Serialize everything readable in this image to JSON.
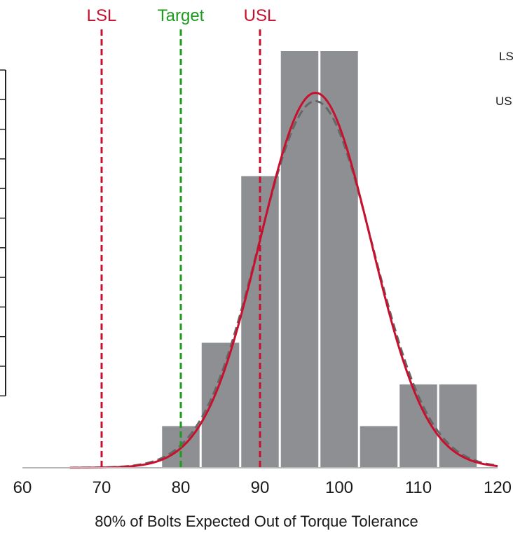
{
  "chart_data": {
    "type": "bar",
    "xlabel": "80% of Bolts Expected Out of Torque Tolerance",
    "xlim": [
      60,
      120
    ],
    "xticks": [
      60,
      70,
      80,
      90,
      100,
      110,
      120
    ],
    "bins": [
      {
        "start": 77.5,
        "end": 82.5,
        "count": 1
      },
      {
        "start": 82.5,
        "end": 87.5,
        "count": 3
      },
      {
        "start": 87.5,
        "end": 92.5,
        "count": 7
      },
      {
        "start": 92.5,
        "end": 97.5,
        "count": 10
      },
      {
        "start": 97.5,
        "end": 102.5,
        "count": 10
      },
      {
        "start": 102.5,
        "end": 107.5,
        "count": 1
      },
      {
        "start": 107.5,
        "end": 112.5,
        "count": 2
      },
      {
        "start": 112.5,
        "end": 117.5,
        "count": 2
      }
    ],
    "reference_lines": [
      {
        "label": "LSL",
        "x": 70,
        "color": "#c8102e"
      },
      {
        "label": "Target",
        "x": 80,
        "color": "#1e9a1e"
      },
      {
        "label": "USL",
        "x": 90,
        "color": "#c8102e"
      }
    ],
    "fit_curves": [
      {
        "style": "solid",
        "color": "#c8102e",
        "mean": 97,
        "sd": 7,
        "peak_count": 9
      },
      {
        "style": "dashed",
        "color": "#666666",
        "mean": 97,
        "sd": 7.2,
        "peak_count": 8.8
      }
    ],
    "side_labels": [
      "LS",
      "US"
    ],
    "colors": {
      "bar": "#8e8f92",
      "bar_edge": "#ffffff",
      "axis": "#b5b5b5"
    }
  }
}
